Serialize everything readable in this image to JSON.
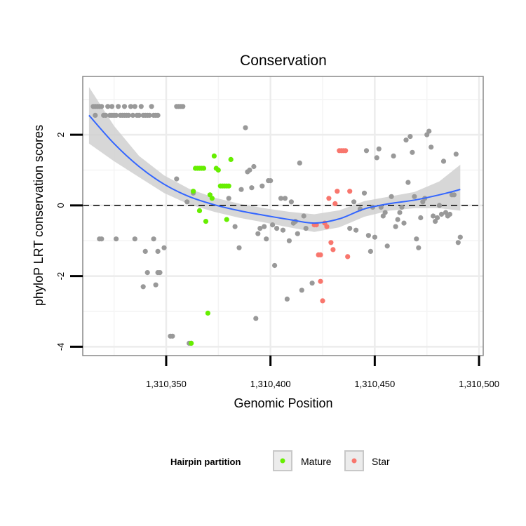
{
  "chart_data": {
    "type": "scatter",
    "title": "Conservation",
    "xlabel": "Genomic Position",
    "ylabel": "phyloP LRT conservation scores",
    "xlim": [
      1310310,
      1310502
    ],
    "ylim": [
      -4.25,
      3.65
    ],
    "x_ticks": [
      {
        "value": 1310350,
        "label": "1,310,350"
      },
      {
        "value": 1310400,
        "label": "1,310,400"
      },
      {
        "value": 1310450,
        "label": "1,310,450"
      },
      {
        "value": 1310500,
        "label": "1,310,500"
      }
    ],
    "y_ticks": [
      {
        "value": 2,
        "label": "2"
      },
      {
        "value": 0,
        "label": "0"
      },
      {
        "value": -2,
        "label": "-2"
      },
      {
        "value": -4,
        "label": "-4"
      }
    ],
    "grid": true,
    "reference_line": {
      "y": 0,
      "style": "dashed"
    },
    "legend": {
      "title": "Hairpin partition",
      "position": "bottom",
      "entries": [
        {
          "name": "Mature",
          "color": "#66ee00"
        },
        {
          "name": "Star",
          "color": "#f8766d"
        }
      ]
    },
    "colors": {
      "other": "#999999",
      "mature": "#66ee00",
      "star": "#f8766d",
      "smooth": "#3366ff",
      "ribbon": "#d0d0d0"
    },
    "series": [
      {
        "name": "Other",
        "points": [
          [
            1310315,
            2.8
          ],
          [
            1310316,
            2.8
          ],
          [
            1310317,
            2.8
          ],
          [
            1310318,
            2.8
          ],
          [
            1310319,
            2.8
          ],
          [
            1310316,
            2.55
          ],
          [
            1310320,
            2.55
          ],
          [
            1310321,
            2.55
          ],
          [
            1310322,
            2.8
          ],
          [
            1310323,
            2.55
          ],
          [
            1310324,
            2.55
          ],
          [
            1310324,
            2.8
          ],
          [
            1310325,
            2.55
          ],
          [
            1310326,
            2.55
          ],
          [
            1310327,
            2.8
          ],
          [
            1310328,
            2.55
          ],
          [
            1310329,
            2.55
          ],
          [
            1310330,
            2.55
          ],
          [
            1310330,
            2.8
          ],
          [
            1310331,
            2.55
          ],
          [
            1310332,
            2.55
          ],
          [
            1310333,
            2.8
          ],
          [
            1310334,
            2.55
          ],
          [
            1310335,
            2.8
          ],
          [
            1310336,
            2.55
          ],
          [
            1310337,
            2.55
          ],
          [
            1310338,
            2.8
          ],
          [
            1310339,
            2.55
          ],
          [
            1310340,
            2.55
          ],
          [
            1310341,
            2.55
          ],
          [
            1310342,
            2.55
          ],
          [
            1310343,
            2.8
          ],
          [
            1310344,
            2.55
          ],
          [
            1310345,
            2.55
          ],
          [
            1310346,
            2.55
          ],
          [
            1310355,
            2.8
          ],
          [
            1310356,
            2.8
          ],
          [
            1310357,
            2.8
          ],
          [
            1310358,
            2.8
          ],
          [
            1310318,
            -0.95
          ],
          [
            1310319,
            -0.95
          ],
          [
            1310326,
            -0.95
          ],
          [
            1310335,
            -0.95
          ],
          [
            1310340,
            -1.3
          ],
          [
            1310341,
            -1.9
          ],
          [
            1310339,
            -2.3
          ],
          [
            1310344,
            -0.95
          ],
          [
            1310346,
            -1.3
          ],
          [
            1310345,
            -2.25
          ],
          [
            1310346,
            -1.9
          ],
          [
            1310347,
            -1.9
          ],
          [
            1310349,
            -1.2
          ],
          [
            1310352,
            -3.7
          ],
          [
            1310353,
            -3.7
          ],
          [
            1310355,
            0.75
          ],
          [
            1310360,
            0.1
          ],
          [
            1310363,
            0.35
          ],
          [
            1310380,
            0.2
          ],
          [
            1310383,
            -0.6
          ],
          [
            1310385,
            -1.2
          ],
          [
            1310386,
            0.45
          ],
          [
            1310388,
            2.2
          ],
          [
            1310389,
            0.95
          ],
          [
            1310390,
            1.0
          ],
          [
            1310391,
            0.5
          ],
          [
            1310392,
            1.1
          ],
          [
            1310393,
            -3.2
          ],
          [
            1310394,
            -0.8
          ],
          [
            1310395,
            -0.65
          ],
          [
            1310396,
            0.55
          ],
          [
            1310397,
            -0.6
          ],
          [
            1310398,
            -0.95
          ],
          [
            1310399,
            0.7
          ],
          [
            1310400,
            0.7
          ],
          [
            1310401,
            -0.55
          ],
          [
            1310402,
            -1.7
          ],
          [
            1310403,
            -0.65
          ],
          [
            1310405,
            0.2
          ],
          [
            1310406,
            -0.7
          ],
          [
            1310407,
            0.2
          ],
          [
            1310408,
            -2.65
          ],
          [
            1310409,
            -1.0
          ],
          [
            1310410,
            0.1
          ],
          [
            1310411,
            -0.5
          ],
          [
            1310412,
            -0.45
          ],
          [
            1310413,
            -0.8
          ],
          [
            1310414,
            1.2
          ],
          [
            1310415,
            -2.4
          ],
          [
            1310416,
            -0.3
          ],
          [
            1310417,
            -0.65
          ],
          [
            1310420,
            -2.2
          ],
          [
            1310438,
            -0.65
          ],
          [
            1310440,
            0.1
          ],
          [
            1310441,
            -0.7
          ],
          [
            1310443,
            -0.1
          ],
          [
            1310445,
            0.35
          ],
          [
            1310446,
            1.55
          ],
          [
            1310447,
            -0.85
          ],
          [
            1310448,
            -1.3
          ],
          [
            1310449,
            -0.05
          ],
          [
            1310450,
            -0.9
          ],
          [
            1310451,
            1.35
          ],
          [
            1310452,
            1.6
          ],
          [
            1310453,
            -0.05
          ],
          [
            1310454,
            -0.3
          ],
          [
            1310455,
            -0.2
          ],
          [
            1310456,
            -1.15
          ],
          [
            1310458,
            0.25
          ],
          [
            1310459,
            1.4
          ],
          [
            1310460,
            -0.6
          ],
          [
            1310461,
            -0.4
          ],
          [
            1310462,
            -0.2
          ],
          [
            1310463,
            -0.05
          ],
          [
            1310464,
            -0.5
          ],
          [
            1310465,
            1.85
          ],
          [
            1310466,
            0.65
          ],
          [
            1310467,
            1.95
          ],
          [
            1310468,
            1.5
          ],
          [
            1310469,
            0.25
          ],
          [
            1310470,
            -0.95
          ],
          [
            1310471,
            -1.2
          ],
          [
            1310472,
            -0.35
          ],
          [
            1310473,
            0.1
          ],
          [
            1310474,
            0.2
          ],
          [
            1310475,
            2.0
          ],
          [
            1310476,
            2.1
          ],
          [
            1310477,
            1.65
          ],
          [
            1310478,
            -0.3
          ],
          [
            1310479,
            -0.45
          ],
          [
            1310480,
            -0.35
          ],
          [
            1310481,
            0.0
          ],
          [
            1310482,
            -0.25
          ],
          [
            1310483,
            1.25
          ],
          [
            1310484,
            -0.2
          ],
          [
            1310485,
            -0.3
          ],
          [
            1310486,
            -0.25
          ],
          [
            1310487,
            0.3
          ],
          [
            1310488,
            0.3
          ],
          [
            1310489,
            1.45
          ],
          [
            1310490,
            -1.05
          ],
          [
            1310491,
            -0.9
          ],
          [
            1310361,
            -3.9
          ],
          [
            1310362,
            -3.9
          ]
        ]
      },
      {
        "name": "Mature",
        "points": [
          [
            1310363,
            0.4
          ],
          [
            1310364,
            1.05
          ],
          [
            1310365,
            1.05
          ],
          [
            1310366,
            1.05
          ],
          [
            1310367,
            1.05
          ],
          [
            1310368,
            1.05
          ],
          [
            1310366,
            -0.15
          ],
          [
            1310369,
            -0.45
          ],
          [
            1310371,
            0.3
          ],
          [
            1310372,
            0.2
          ],
          [
            1310373,
            1.4
          ],
          [
            1310374,
            1.05
          ],
          [
            1310375,
            1.0
          ],
          [
            1310376,
            0.55
          ],
          [
            1310377,
            0.55
          ],
          [
            1310378,
            0.55
          ],
          [
            1310379,
            0.55
          ],
          [
            1310380,
            0.55
          ],
          [
            1310379,
            -0.4
          ],
          [
            1310381,
            1.3
          ],
          [
            1310370,
            -3.05
          ],
          [
            1310362,
            -3.9
          ]
        ]
      },
      {
        "name": "Star",
        "points": [
          [
            1310421,
            -0.55
          ],
          [
            1310422,
            -0.55
          ],
          [
            1310423,
            -1.4
          ],
          [
            1310424,
            -1.4
          ],
          [
            1310424,
            -2.15
          ],
          [
            1310425,
            -2.7
          ],
          [
            1310426,
            -0.5
          ],
          [
            1310427,
            -0.6
          ],
          [
            1310428,
            0.2
          ],
          [
            1310429,
            -1.05
          ],
          [
            1310430,
            -1.25
          ],
          [
            1310431,
            0.05
          ],
          [
            1310432,
            0.4
          ],
          [
            1310433,
            1.55
          ],
          [
            1310434,
            1.55
          ],
          [
            1310435,
            1.55
          ],
          [
            1310436,
            1.55
          ],
          [
            1310437,
            -1.45
          ],
          [
            1310438,
            0.4
          ]
        ]
      }
    ],
    "smooth": {
      "method": "loess",
      "x": [
        1310313,
        1310325,
        1310337,
        1310349,
        1310361,
        1310373,
        1310385,
        1310397,
        1310409,
        1310421,
        1310433,
        1310445,
        1310457,
        1310469,
        1310481,
        1310491
      ],
      "y": [
        2.55,
        1.75,
        1.1,
        0.6,
        0.25,
        0.02,
        -0.15,
        -0.28,
        -0.4,
        -0.5,
        -0.38,
        -0.1,
        0.05,
        0.15,
        0.3,
        0.45
      ],
      "lower": [
        1.75,
        1.25,
        0.8,
        0.35,
        0.03,
        -0.18,
        -0.35,
        -0.48,
        -0.62,
        -0.75,
        -0.62,
        -0.32,
        -0.15,
        -0.08,
        -0.08,
        -0.15
      ],
      "upper": [
        3.35,
        2.25,
        1.4,
        0.85,
        0.47,
        0.22,
        0.05,
        -0.08,
        -0.18,
        -0.25,
        -0.14,
        0.12,
        0.25,
        0.38,
        0.68,
        1.15
      ]
    }
  }
}
